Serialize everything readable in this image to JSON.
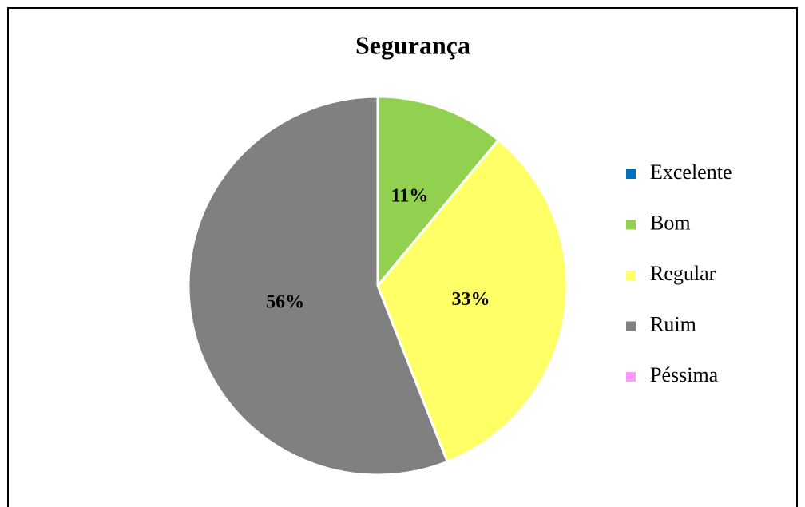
{
  "chart_data": {
    "type": "pie",
    "title": "Segurança",
    "categories": [
      "Excelente",
      "Bom",
      "Regular",
      "Ruim",
      "Péssima"
    ],
    "values": [
      0,
      11,
      33,
      56,
      0
    ],
    "value_labels": [
      null,
      "11%",
      "33%",
      "56%",
      null
    ],
    "colors": [
      "#0070c0",
      "#92d050",
      "#ffff66",
      "#808080",
      "#ff99ff"
    ],
    "legend": "right"
  }
}
